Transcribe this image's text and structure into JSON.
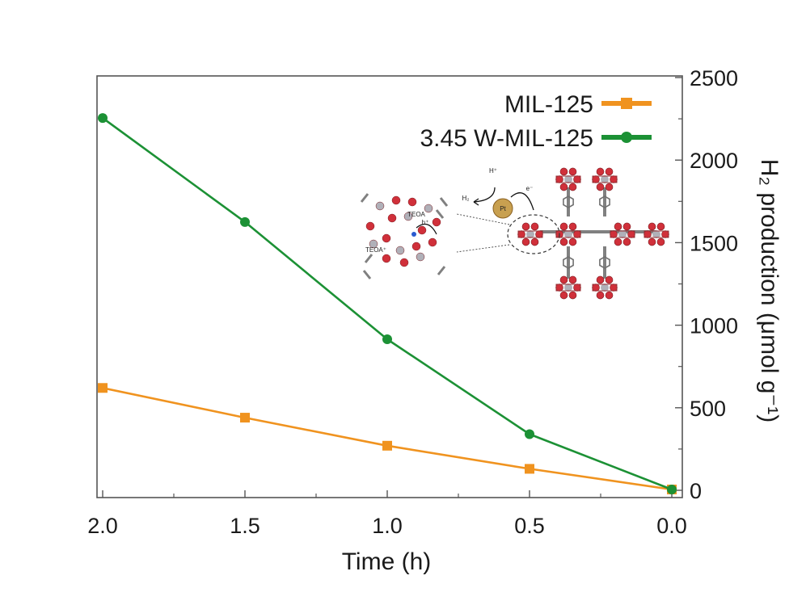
{
  "chart_data": {
    "type": "line",
    "orientation_note": "mirrored",
    "xlabel": "Time (h)",
    "ylabel": "H₂ production (μmol g⁻¹)",
    "xlim": [
      0,
      2
    ],
    "ylim": [
      0,
      2500
    ],
    "x_reversed": true,
    "y_axis_side": "right",
    "xticks": [
      {
        "value": 0,
        "label": "0.0"
      },
      {
        "value": 0.5,
        "label": "0.5"
      },
      {
        "value": 1,
        "label": "1.0"
      },
      {
        "value": 1.5,
        "label": "1.5"
      },
      {
        "value": 2,
        "label": "2.0"
      }
    ],
    "yticks": [
      {
        "value": 0,
        "label": "0"
      },
      {
        "value": 500,
        "label": "500"
      },
      {
        "value": 1000,
        "label": "1000"
      },
      {
        "value": 1500,
        "label": "1500"
      },
      {
        "value": 2000,
        "label": "2000"
      },
      {
        "value": 2500,
        "label": "2500"
      }
    ],
    "legend_position": "top-left",
    "grid": false,
    "series": [
      {
        "name": "MIL-125",
        "color": "#f0931f",
        "marker": "square",
        "x": [
          0,
          0.5,
          1.0,
          1.5,
          2.0
        ],
        "y": [
          5,
          130,
          270,
          440,
          620
        ]
      },
      {
        "name": "3.45 W-MIL-125",
        "color": "#1c9135",
        "marker": "circle",
        "x": [
          0,
          0.5,
          1.0,
          1.5,
          2.0
        ],
        "y": [
          5,
          340,
          915,
          1625,
          2255
        ]
      }
    ],
    "inset": {
      "labels": [
        "H⁺",
        "H₂",
        "e⁻",
        "Pt",
        "TEOA",
        "TEOA⁺",
        "h⁺"
      ],
      "metal_color": "#c8a050",
      "oxygen_color": "#d0303a",
      "carbon_color": "#808080"
    }
  }
}
